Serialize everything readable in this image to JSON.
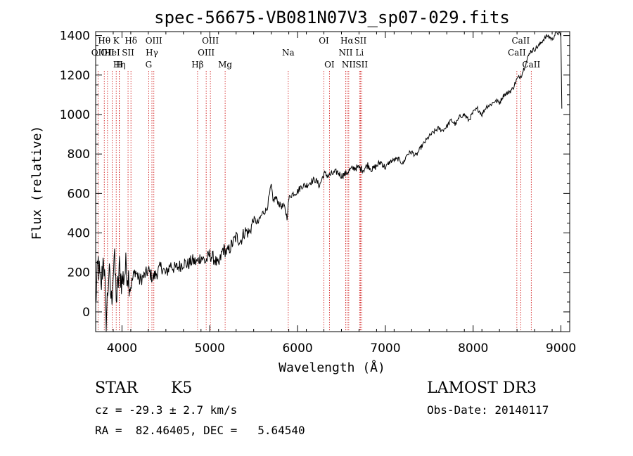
{
  "chart_data": {
    "type": "line",
    "title": "spec-56675-VB081N07V3_sp07-029.fits",
    "xlabel": "Wavelength (Å)",
    "ylabel": "Flux (relative)",
    "xlim": [
      3700,
      9100
    ],
    "ylim": [
      -100,
      1420
    ],
    "xticks": [
      4000,
      5000,
      6000,
      7000,
      8000,
      9000
    ],
    "yticks": [
      0,
      200,
      400,
      600,
      800,
      1000,
      1200,
      1400
    ],
    "series": [
      {
        "name": "flux",
        "x": [
          3700,
          3730,
          3760,
          3790,
          3820,
          3850,
          3880,
          3910,
          3940,
          3970,
          4000,
          4050,
          4100,
          4150,
          4200,
          4250,
          4300,
          4350,
          4400,
          4450,
          4500,
          4550,
          4600,
          4650,
          4700,
          4750,
          4800,
          4850,
          4900,
          4950,
          5000,
          5050,
          5100,
          5150,
          5200,
          5250,
          5300,
          5350,
          5400,
          5450,
          5500,
          5550,
          5600,
          5650,
          5700,
          5720,
          5750,
          5800,
          5850,
          5880,
          5900,
          5920,
          5950,
          6000,
          6050,
          6100,
          6150,
          6200,
          6250,
          6300,
          6350,
          6400,
          6450,
          6500,
          6550,
          6600,
          6650,
          6700,
          6750,
          6800,
          6850,
          6900,
          6950,
          7000,
          7050,
          7100,
          7150,
          7200,
          7250,
          7300,
          7350,
          7400,
          7450,
          7500,
          7550,
          7600,
          7650,
          7700,
          7750,
          7800,
          7850,
          7900,
          7950,
          8000,
          8050,
          8100,
          8150,
          8200,
          8250,
          8300,
          8350,
          8400,
          8450,
          8500,
          8550,
          8600,
          8650,
          8700,
          8750,
          8800,
          8850,
          8900,
          8950,
          9000,
          9010
        ],
        "y": [
          50,
          250,
          100,
          300,
          -40,
          200,
          50,
          280,
          60,
          220,
          150,
          230,
          130,
          210,
          160,
          180,
          210,
          170,
          200,
          230,
          190,
          240,
          220,
          230,
          250,
          240,
          260,
          250,
          280,
          255,
          290,
          270,
          230,
          320,
          300,
          340,
          380,
          360,
          410,
          400,
          470,
          450,
          500,
          520,
          640,
          560,
          580,
          540,
          530,
          480,
          570,
          590,
          600,
          610,
          640,
          640,
          660,
          670,
          640,
          700,
          690,
          700,
          710,
          690,
          700,
          720,
          730,
          730,
          720,
          745,
          720,
          740,
          760,
          730,
          760,
          770,
          775,
          750,
          800,
          810,
          790,
          830,
          860,
          890,
          910,
          930,
          920,
          940,
          970,
          950,
          990,
          1000,
          970,
          1010,
          1030,
          1000,
          1040,
          1050,
          1070,
          1060,
          1100,
          1110,
          1130,
          1180,
          1200,
          1260,
          1320,
          1330,
          1350,
          1380,
          1400,
          1380,
          1420,
          1400,
          1030
        ]
      }
    ],
    "line_markers": [
      {
        "name": "OII",
        "wavelength": 3727,
        "row": 2
      },
      {
        "name": "Hθ",
        "wavelength": 3798,
        "row": 1
      },
      {
        "name": "OII",
        "wavelength": 3835,
        "row": 2
      },
      {
        "name": "HeI",
        "wavelength": 3889,
        "row": 2
      },
      {
        "name": "K",
        "wavelength": 3934,
        "row": 1
      },
      {
        "name": "Hη",
        "wavelength": 3970,
        "row": 3
      },
      {
        "name": "H",
        "wavelength": 3968,
        "row": 3
      },
      {
        "name": "SII",
        "wavelength": 4069,
        "row": 2
      },
      {
        "name": "Hδ",
        "wavelength": 4102,
        "row": 1
      },
      {
        "name": "G",
        "wavelength": 4304,
        "row": 3
      },
      {
        "name": "Hγ",
        "wavelength": 4341,
        "row": 2
      },
      {
        "name": "OIII",
        "wavelength": 4363,
        "row": 1
      },
      {
        "name": "Hβ",
        "wavelength": 4861,
        "row": 3
      },
      {
        "name": "OIII",
        "wavelength": 4959,
        "row": 2
      },
      {
        "name": "OIII",
        "wavelength": 5007,
        "row": 1
      },
      {
        "name": "Mg",
        "wavelength": 5175,
        "row": 3
      },
      {
        "name": "Na",
        "wavelength": 5894,
        "row": 2
      },
      {
        "name": "OI",
        "wavelength": 6300,
        "row": 1
      },
      {
        "name": "OI",
        "wavelength": 6363,
        "row": 3
      },
      {
        "name": "NII",
        "wavelength": 6548,
        "row": 2
      },
      {
        "name": "Hα",
        "wavelength": 6563,
        "row": 1
      },
      {
        "name": "NII",
        "wavelength": 6583,
        "row": 3
      },
      {
        "name": "Li",
        "wavelength": 6707,
        "row": 2
      },
      {
        "name": "SII",
        "wavelength": 6716,
        "row": 1
      },
      {
        "name": "SII",
        "wavelength": 6731,
        "row": 3
      },
      {
        "name": "CaII",
        "wavelength": 8498,
        "row": 2
      },
      {
        "name": "CaII",
        "wavelength": 8542,
        "row": 1
      },
      {
        "name": "CaII",
        "wavelength": 8662,
        "row": 3
      }
    ],
    "colors": {
      "spectrum": "#000000",
      "marker": "#cc0000",
      "axis": "#000000"
    }
  },
  "info": {
    "object_class": "STAR",
    "subclass": "K5",
    "survey": "LAMOST DR3",
    "redshift": "cz = -29.3 ± 2.7 km/s",
    "obs_date": "Obs-Date: 20140117",
    "coords": "RA =  82.46405, DEC =   5.64540"
  }
}
